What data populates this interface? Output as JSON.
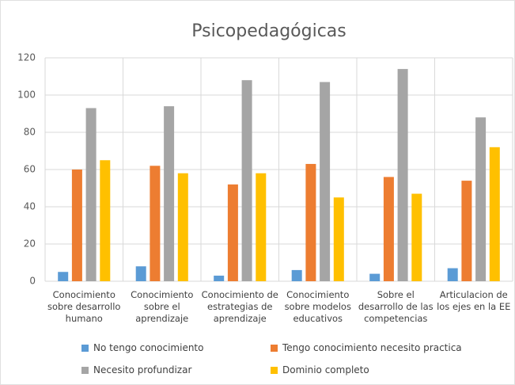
{
  "chart_data": {
    "type": "bar",
    "title": "Psicopedagógicas",
    "categories": [
      "Conocimiento sobre desarrollo humano",
      "Conocimiento sobre el aprendizaje",
      "Conocimiento de estrategias de aprendizaje",
      "Conocimiento sobre modelos educativos",
      "Sobre el desarrollo de las competencias",
      "Articulacion de los ejes en la EE"
    ],
    "series": [
      {
        "name": "No tengo conocimiento",
        "color": "#5b9bd5",
        "values": [
          5,
          8,
          3,
          6,
          4,
          7
        ]
      },
      {
        "name": "Tengo conocimiento necesito practica",
        "color": "#ed7d31",
        "values": [
          60,
          62,
          52,
          63,
          56,
          54
        ]
      },
      {
        "name": "Necesito profundizar",
        "color": "#a5a5a5",
        "values": [
          93,
          94,
          108,
          107,
          114,
          88
        ]
      },
      {
        "name": "Dominio completo",
        "color": "#ffc000",
        "values": [
          65,
          58,
          58,
          45,
          47,
          72
        ]
      }
    ],
    "ylim": [
      0,
      120
    ],
    "yticks": [
      0,
      20,
      40,
      60,
      80,
      100,
      120
    ],
    "grid": true,
    "legend": "bottom"
  }
}
